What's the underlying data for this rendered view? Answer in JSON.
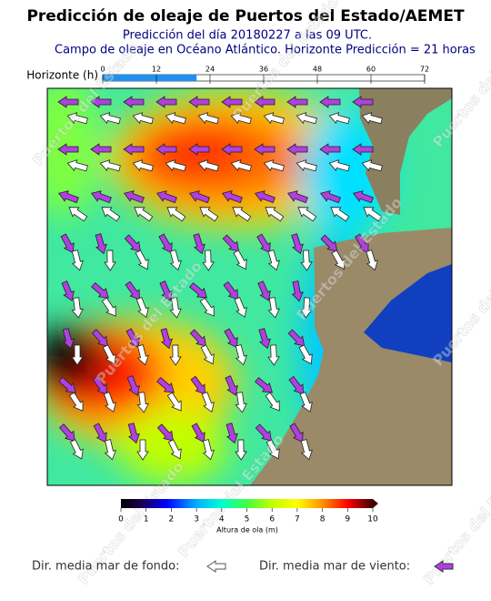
{
  "header": {
    "title": "Predicción de oleaje de Puertos del Estado/AEMET",
    "subtitle": "Predicción del día 20180227 a las 09 UTC.",
    "description": "Campo de oleaje en Océano Atlántico. Horizonte Predicción = 21 horas"
  },
  "horizon": {
    "label": "Horizonte (h)",
    "value": 21,
    "range": [
      0,
      72
    ],
    "ticks": [
      0,
      12,
      24,
      36,
      48,
      60,
      72
    ]
  },
  "colorbar": {
    "label": "Altura de ola (m)",
    "range": [
      0,
      10
    ],
    "ticks": [
      0,
      1,
      2,
      3,
      4,
      5,
      6,
      7,
      8,
      9,
      10
    ]
  },
  "watermark": "Puertos del Estado",
  "legend": {
    "swell": "Dir. media mar de fondo:",
    "wind": "Dir. media mar de viento:"
  }
}
